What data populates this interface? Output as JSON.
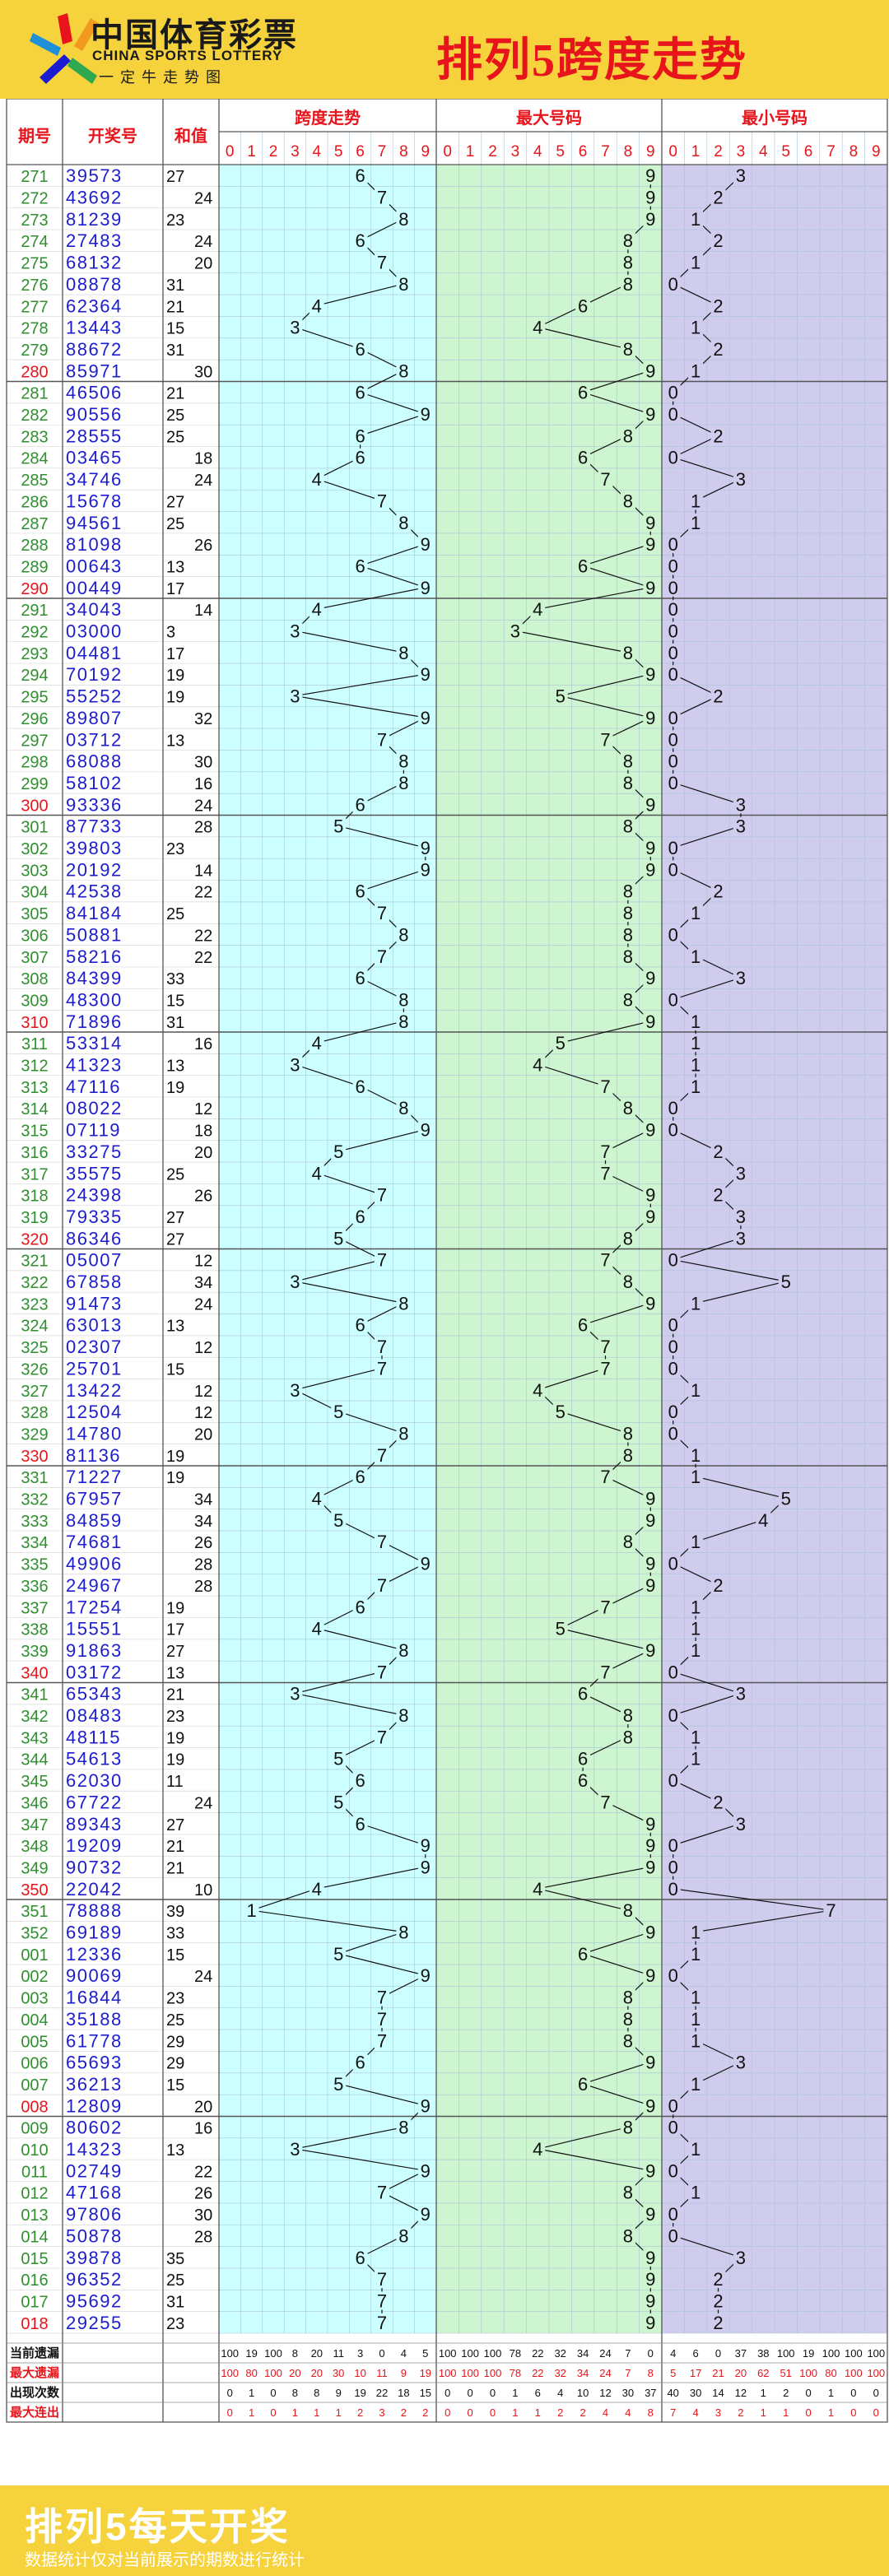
{
  "header": {
    "logo_cn": "中国体育彩票",
    "logo_en": "CHINA SPORTS LOTTERY",
    "logo_sub": "一定牛走势图",
    "title": "排列5跨度走势"
  },
  "colors": {
    "header_bg": "#f6d33d",
    "span_zone": "#ccffff",
    "max_zone": "#ccf5d0",
    "min_zone": "#d0ccee",
    "blue_text": "#1c1cd0",
    "red_text": "#e8141b",
    "green_text": "#2f8f2f"
  },
  "chart_data": {
    "type": "table",
    "columns": {
      "period": "期号",
      "draw": "开奖号",
      "sum": "和值",
      "span": "跨度走势",
      "max": "最大号码",
      "min": "最小号码"
    },
    "digits": [
      "0",
      "1",
      "2",
      "3",
      "4",
      "5",
      "6",
      "7",
      "8",
      "9"
    ],
    "rows": [
      [
        "271",
        "39573",
        "27",
        "6",
        "9",
        "3"
      ],
      [
        "272",
        "43692",
        "24",
        "7",
        "9",
        "2"
      ],
      [
        "273",
        "81239",
        "23",
        "8",
        "9",
        "1"
      ],
      [
        "274",
        "27483",
        "24",
        "6",
        "8",
        "2"
      ],
      [
        "275",
        "68132",
        "20",
        "7",
        "8",
        "1"
      ],
      [
        "276",
        "08878",
        "31",
        "8",
        "8",
        "0"
      ],
      [
        "277",
        "62364",
        "21",
        "4",
        "6",
        "2"
      ],
      [
        "278",
        "13443",
        "15",
        "3",
        "4",
        "1"
      ],
      [
        "279",
        "88672",
        "31",
        "6",
        "8",
        "2"
      ],
      [
        "280",
        "85971",
        "30",
        "8",
        "9",
        "1"
      ],
      [
        "281",
        "46506",
        "21",
        "6",
        "6",
        "0"
      ],
      [
        "282",
        "90556",
        "25",
        "9",
        "9",
        "0"
      ],
      [
        "283",
        "28555",
        "25",
        "6",
        "8",
        "2"
      ],
      [
        "284",
        "03465",
        "18",
        "6",
        "6",
        "0"
      ],
      [
        "285",
        "34746",
        "24",
        "4",
        "7",
        "3"
      ],
      [
        "286",
        "15678",
        "27",
        "7",
        "8",
        "1"
      ],
      [
        "287",
        "94561",
        "25",
        "8",
        "9",
        "1"
      ],
      [
        "288",
        "81098",
        "26",
        "9",
        "9",
        "0"
      ],
      [
        "289",
        "00643",
        "13",
        "6",
        "6",
        "0"
      ],
      [
        "290",
        "00449",
        "17",
        "9",
        "9",
        "0"
      ],
      [
        "291",
        "34043",
        "14",
        "4",
        "4",
        "0"
      ],
      [
        "292",
        "03000",
        "3",
        "3",
        "3",
        "0"
      ],
      [
        "293",
        "04481",
        "17",
        "8",
        "8",
        "0"
      ],
      [
        "294",
        "70192",
        "19",
        "9",
        "9",
        "0"
      ],
      [
        "295",
        "55252",
        "19",
        "3",
        "5",
        "2"
      ],
      [
        "296",
        "89807",
        "32",
        "9",
        "9",
        "0"
      ],
      [
        "297",
        "03712",
        "13",
        "7",
        "7",
        "0"
      ],
      [
        "298",
        "68088",
        "30",
        "8",
        "8",
        "0"
      ],
      [
        "299",
        "58102",
        "16",
        "8",
        "8",
        "0"
      ],
      [
        "300",
        "93336",
        "24",
        "6",
        "9",
        "3"
      ],
      [
        "301",
        "87733",
        "28",
        "5",
        "8",
        "3"
      ],
      [
        "302",
        "39803",
        "23",
        "9",
        "9",
        "0"
      ],
      [
        "303",
        "20192",
        "14",
        "9",
        "9",
        "0"
      ],
      [
        "304",
        "42538",
        "22",
        "6",
        "8",
        "2"
      ],
      [
        "305",
        "84184",
        "25",
        "7",
        "8",
        "1"
      ],
      [
        "306",
        "50881",
        "22",
        "8",
        "8",
        "0"
      ],
      [
        "307",
        "58216",
        "22",
        "7",
        "8",
        "1"
      ],
      [
        "308",
        "84399",
        "33",
        "6",
        "9",
        "3"
      ],
      [
        "309",
        "48300",
        "15",
        "8",
        "8",
        "0"
      ],
      [
        "310",
        "71896",
        "31",
        "8",
        "9",
        "1"
      ],
      [
        "311",
        "53314",
        "16",
        "4",
        "5",
        "1"
      ],
      [
        "312",
        "41323",
        "13",
        "3",
        "4",
        "1"
      ],
      [
        "313",
        "47116",
        "19",
        "6",
        "7",
        "1"
      ],
      [
        "314",
        "08022",
        "12",
        "8",
        "8",
        "0"
      ],
      [
        "315",
        "07119",
        "18",
        "9",
        "9",
        "0"
      ],
      [
        "316",
        "33275",
        "20",
        "5",
        "7",
        "2"
      ],
      [
        "317",
        "35575",
        "25",
        "4",
        "7",
        "3"
      ],
      [
        "318",
        "24398",
        "26",
        "7",
        "9",
        "2"
      ],
      [
        "319",
        "79335",
        "27",
        "6",
        "9",
        "3"
      ],
      [
        "320",
        "86346",
        "27",
        "5",
        "8",
        "3"
      ],
      [
        "321",
        "05007",
        "12",
        "7",
        "7",
        "0"
      ],
      [
        "322",
        "67858",
        "34",
        "3",
        "8",
        "5"
      ],
      [
        "323",
        "91473",
        "24",
        "8",
        "9",
        "1"
      ],
      [
        "324",
        "63013",
        "13",
        "6",
        "6",
        "0"
      ],
      [
        "325",
        "02307",
        "12",
        "7",
        "7",
        "0"
      ],
      [
        "326",
        "25701",
        "15",
        "7",
        "7",
        "0"
      ],
      [
        "327",
        "13422",
        "12",
        "3",
        "4",
        "1"
      ],
      [
        "328",
        "12504",
        "12",
        "5",
        "5",
        "0"
      ],
      [
        "329",
        "14780",
        "20",
        "8",
        "8",
        "0"
      ],
      [
        "330",
        "81136",
        "19",
        "7",
        "8",
        "1"
      ],
      [
        "331",
        "71227",
        "19",
        "6",
        "7",
        "1"
      ],
      [
        "332",
        "67957",
        "34",
        "4",
        "9",
        "5"
      ],
      [
        "333",
        "84859",
        "34",
        "5",
        "9",
        "4"
      ],
      [
        "334",
        "74681",
        "26",
        "7",
        "8",
        "1"
      ],
      [
        "335",
        "49906",
        "28",
        "9",
        "9",
        "0"
      ],
      [
        "336",
        "24967",
        "28",
        "7",
        "9",
        "2"
      ],
      [
        "337",
        "17254",
        "19",
        "6",
        "7",
        "1"
      ],
      [
        "338",
        "15551",
        "17",
        "4",
        "5",
        "1"
      ],
      [
        "339",
        "91863",
        "27",
        "8",
        "9",
        "1"
      ],
      [
        "340",
        "03172",
        "13",
        "7",
        "7",
        "0"
      ],
      [
        "341",
        "65343",
        "21",
        "3",
        "6",
        "3"
      ],
      [
        "342",
        "08483",
        "23",
        "8",
        "8",
        "0"
      ],
      [
        "343",
        "48115",
        "19",
        "7",
        "8",
        "1"
      ],
      [
        "344",
        "54613",
        "19",
        "5",
        "6",
        "1"
      ],
      [
        "345",
        "62030",
        "11",
        "6",
        "6",
        "0"
      ],
      [
        "346",
        "67722",
        "24",
        "5",
        "7",
        "2"
      ],
      [
        "347",
        "89343",
        "27",
        "6",
        "9",
        "3"
      ],
      [
        "348",
        "19209",
        "21",
        "9",
        "9",
        "0"
      ],
      [
        "349",
        "90732",
        "21",
        "9",
        "9",
        "0"
      ],
      [
        "350",
        "22042",
        "10",
        "4",
        "4",
        "0"
      ],
      [
        "351",
        "78888",
        "39",
        "1",
        "8",
        "7"
      ],
      [
        "352",
        "69189",
        "33",
        "8",
        "9",
        "1"
      ],
      [
        "001",
        "12336",
        "15",
        "5",
        "6",
        "1"
      ],
      [
        "002",
        "90069",
        "24",
        "9",
        "9",
        "0"
      ],
      [
        "003",
        "16844",
        "23",
        "7",
        "8",
        "1"
      ],
      [
        "004",
        "35188",
        "25",
        "7",
        "8",
        "1"
      ],
      [
        "005",
        "61778",
        "29",
        "7",
        "8",
        "1"
      ],
      [
        "006",
        "65693",
        "29",
        "6",
        "9",
        "3"
      ],
      [
        "007",
        "36213",
        "15",
        "5",
        "6",
        "1"
      ],
      [
        "008",
        "12809",
        "20",
        "9",
        "9",
        "0"
      ],
      [
        "009",
        "80602",
        "16",
        "8",
        "8",
        "0"
      ],
      [
        "010",
        "14323",
        "13",
        "3",
        "4",
        "1"
      ],
      [
        "011",
        "02749",
        "22",
        "9",
        "9",
        "0"
      ],
      [
        "012",
        "47168",
        "26",
        "7",
        "8",
        "1"
      ],
      [
        "013",
        "97806",
        "30",
        "9",
        "9",
        "0"
      ],
      [
        "014",
        "50878",
        "28",
        "8",
        "8",
        "0"
      ],
      [
        "015",
        "39878",
        "35",
        "6",
        "9",
        "3"
      ],
      [
        "016",
        "96352",
        "25",
        "7",
        "9",
        "2"
      ],
      [
        "017",
        "95692",
        "31",
        "7",
        "9",
        "2"
      ],
      [
        "018",
        "29255",
        "23",
        "7",
        "9",
        "2"
      ]
    ],
    "stats": [
      {
        "label": "当前遗漏",
        "values": [
          "100",
          "19",
          "100",
          "8",
          "20",
          "11",
          "3",
          "0",
          "4",
          "5",
          "100",
          "100",
          "100",
          "78",
          "22",
          "32",
          "34",
          "24",
          "7",
          "0",
          "4",
          "6",
          "0",
          "37",
          "38",
          "100",
          "19",
          "100",
          "100",
          "100"
        ]
      },
      {
        "label": "最大遗漏",
        "values": [
          "100",
          "80",
          "100",
          "20",
          "20",
          "30",
          "10",
          "11",
          "9",
          "19",
          "100",
          "100",
          "100",
          "78",
          "22",
          "32",
          "34",
          "24",
          "7",
          "8",
          "5",
          "17",
          "21",
          "20",
          "62",
          "51",
          "100",
          "80",
          "100",
          "100"
        ]
      },
      {
        "label": "出现次数",
        "values": [
          "0",
          "1",
          "0",
          "8",
          "8",
          "9",
          "19",
          "22",
          "18",
          "15",
          "0",
          "0",
          "0",
          "1",
          "6",
          "4",
          "10",
          "12",
          "30",
          "37",
          "40",
          "30",
          "14",
          "12",
          "1",
          "2",
          "0",
          "1",
          "0",
          "0"
        ]
      },
      {
        "label": "最大连出",
        "values": [
          "0",
          "1",
          "0",
          "1",
          "1",
          "1",
          "2",
          "3",
          "2",
          "2",
          "0",
          "0",
          "0",
          "1",
          "1",
          "2",
          "2",
          "4",
          "4",
          "8",
          "7",
          "4",
          "3",
          "2",
          "1",
          "1",
          "0",
          "1",
          "0",
          "0"
        ]
      }
    ]
  },
  "footer": {
    "title": "排列5每天开奖",
    "note": "数据统计仅对当前展示的期数进行统计"
  }
}
